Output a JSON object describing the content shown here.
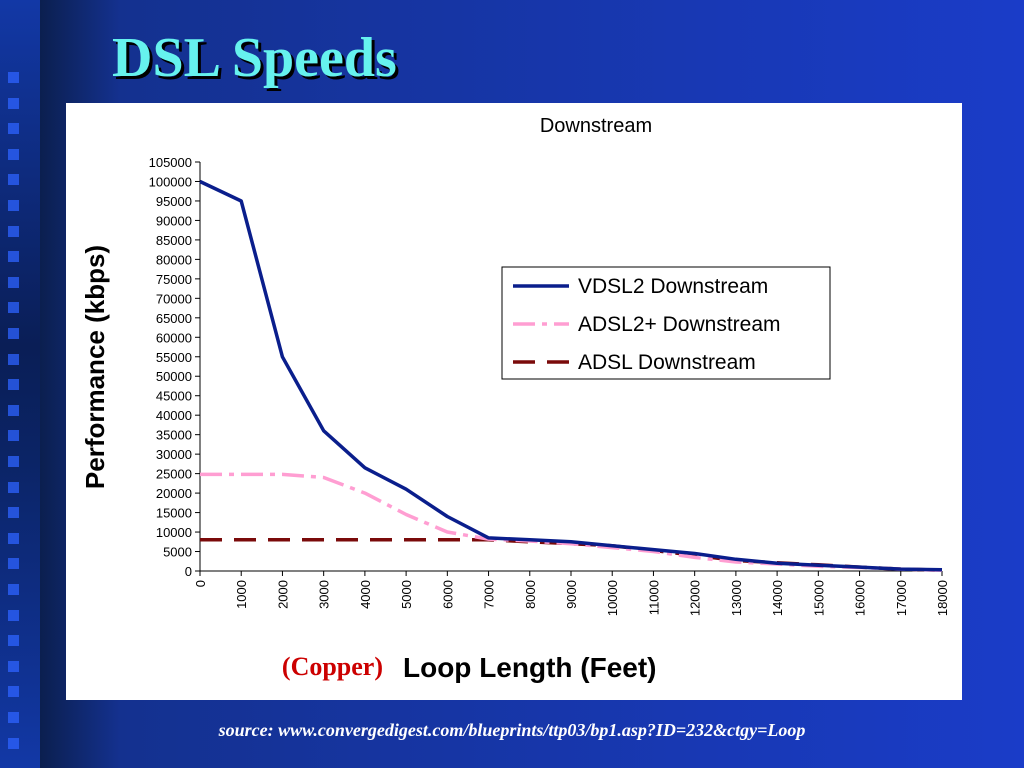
{
  "slide": {
    "title": "DSL Speeds",
    "source": "source: www.convergedigest.com/blueprints/ttp03/bp1.asp?ID=232&ctgy=Loop"
  },
  "colors": {
    "title": "#66f2ee",
    "vdsl2": "#0a1e8c",
    "adsl2plus": "#ff9ed2",
    "adsl": "#7a0a0a",
    "copper_label": "#cc0000"
  },
  "chart_data": {
    "type": "line",
    "title": "Downstream",
    "ylabel": "Performance (kbps)",
    "xlabel": "Loop Length (Feet)",
    "xlabel_prefix": "(Copper)",
    "xlim": [
      0,
      18000
    ],
    "ylim": [
      0,
      105000
    ],
    "xticks": [
      0,
      1000,
      2000,
      3000,
      4000,
      5000,
      6000,
      7000,
      8000,
      9000,
      10000,
      11000,
      12000,
      13000,
      14000,
      15000,
      16000,
      17000,
      18000
    ],
    "yticks": [
      0,
      5000,
      10000,
      15000,
      20000,
      25000,
      30000,
      35000,
      40000,
      45000,
      50000,
      55000,
      60000,
      65000,
      70000,
      75000,
      80000,
      85000,
      90000,
      95000,
      100000,
      105000
    ],
    "grid": false,
    "legend_position": "center-right",
    "series": [
      {
        "name": "VDSL2 Downstream",
        "style": "solid",
        "x": [
          0,
          1000,
          2000,
          3000,
          4000,
          5000,
          6000,
          7000,
          8000,
          9000,
          10000,
          11000,
          12000,
          13000,
          14000,
          15000,
          16000,
          17000,
          18000
        ],
        "y": [
          100000,
          95000,
          55000,
          36000,
          26500,
          21000,
          14000,
          8500,
          8000,
          7500,
          6500,
          5500,
          4500,
          3000,
          2000,
          1500,
          1000,
          500,
          300
        ]
      },
      {
        "name": "ADSL2+ Downstream",
        "style": "dashdot",
        "x": [
          0,
          1000,
          2000,
          3000,
          4000,
          5000,
          6000,
          7000,
          8000,
          9000,
          10000,
          11000,
          12000,
          13000,
          14000,
          15000,
          16000,
          17000,
          18000
        ],
        "y": [
          24800,
          24800,
          24800,
          24000,
          20000,
          14500,
          10000,
          8200,
          7700,
          7000,
          6000,
          5000,
          3500,
          2300,
          1800,
          1200,
          900,
          500,
          200
        ]
      },
      {
        "name": "ADSL Downstream",
        "style": "dashed",
        "x": [
          0,
          1000,
          2000,
          3000,
          4000,
          5000,
          6000,
          7000,
          8000,
          9000,
          10000,
          11000,
          12000,
          13000,
          14000,
          15000,
          16000,
          17000,
          18000
        ],
        "y": [
          8000,
          8000,
          8000,
          8000,
          8000,
          8000,
          8000,
          8000,
          7500,
          7000,
          6500,
          5300,
          4000,
          2700,
          2100,
          1600,
          1000,
          500,
          200
        ]
      }
    ]
  }
}
